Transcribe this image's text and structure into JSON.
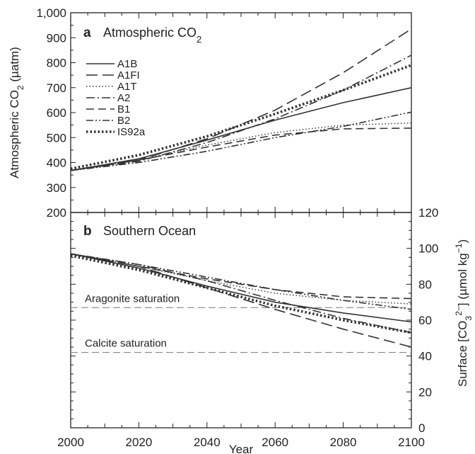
{
  "chart_data": [
    {
      "type": "line",
      "panel_letter": "a",
      "title": "Atmospheric CO",
      "title_subscript": "2",
      "ylabel": "Atmospheric CO",
      "ylabel_sub": "2",
      "ylabel_unit": " (µatm)",
      "xlim": [
        2000,
        2100
      ],
      "ylim": [
        200,
        1000
      ],
      "yticks": [
        200,
        300,
        400,
        500,
        600,
        700,
        800,
        900,
        1000
      ],
      "ytick_labels": [
        "200",
        "300",
        "400",
        "500",
        "600",
        "700",
        "800",
        "900",
        "1,000"
      ],
      "legend_position": "top-left",
      "series": [
        {
          "name": "A1B",
          "dash": "solid",
          "x": [
            2000,
            2020,
            2040,
            2060,
            2080,
            2100
          ],
          "values": [
            368,
            415,
            490,
            570,
            640,
            700
          ]
        },
        {
          "name": "A1FI",
          "dash": "longdash",
          "x": [
            2000,
            2020,
            2040,
            2060,
            2080,
            2100
          ],
          "values": [
            368,
            410,
            495,
            610,
            760,
            935
          ]
        },
        {
          "name": "A1T",
          "dash": "dot",
          "x": [
            2000,
            2020,
            2040,
            2060,
            2080,
            2100
          ],
          "values": [
            368,
            410,
            470,
            520,
            550,
            558
          ]
        },
        {
          "name": "A2",
          "dash": "dashdot",
          "x": [
            2000,
            2020,
            2040,
            2060,
            2080,
            2100
          ],
          "values": [
            368,
            405,
            480,
            575,
            690,
            830
          ]
        },
        {
          "name": "B1",
          "dash": "dash",
          "x": [
            2000,
            2020,
            2040,
            2060,
            2080,
            2100
          ],
          "values": [
            368,
            410,
            462,
            510,
            535,
            538
          ]
        },
        {
          "name": "B2",
          "dash": "dashdotdot",
          "x": [
            2000,
            2020,
            2040,
            2060,
            2080,
            2100
          ],
          "values": [
            368,
            400,
            445,
            500,
            545,
            602
          ]
        },
        {
          "name": "IS92a",
          "dash": "thickdot",
          "x": [
            2000,
            2020,
            2040,
            2060,
            2080,
            2100
          ],
          "values": [
            375,
            430,
            505,
            595,
            690,
            790
          ]
        }
      ]
    },
    {
      "type": "line",
      "panel_letter": "b",
      "title": "Southern Ocean",
      "ylabel": "Surface [CO",
      "ylabel_sub": "3",
      "ylabel_sup": "2−",
      "ylabel_unit": "] (µmol kg",
      "ylabel_unit_sup": "−1",
      "ylabel_close": ")",
      "xlabel": "Year",
      "xlim": [
        2000,
        2100
      ],
      "ylim": [
        0,
        120
      ],
      "yticks": [
        0,
        20,
        40,
        60,
        80,
        100,
        120
      ],
      "xticks": [
        2000,
        2020,
        2040,
        2060,
        2080,
        2100
      ],
      "reference_lines": [
        {
          "label": "Aragonite saturation",
          "value": 67
        },
        {
          "label": "Calcite saturation",
          "value": 42
        }
      ],
      "series": [
        {
          "name": "A1B",
          "dash": "solid",
          "x": [
            2000,
            2020,
            2040,
            2060,
            2080,
            2100
          ],
          "values": [
            97,
            89,
            79,
            70,
            64,
            59
          ]
        },
        {
          "name": "A1FI",
          "dash": "longdash",
          "x": [
            2000,
            2020,
            2040,
            2060,
            2080,
            2100
          ],
          "values": [
            97,
            90,
            78,
            66,
            55,
            45
          ]
        },
        {
          "name": "A1T",
          "dash": "dot",
          "x": [
            2000,
            2020,
            2040,
            2060,
            2080,
            2100
          ],
          "values": [
            97,
            90,
            82,
            75,
            71,
            69
          ]
        },
        {
          "name": "A2",
          "dash": "dashdot",
          "x": [
            2000,
            2020,
            2040,
            2060,
            2080,
            2100
          ],
          "values": [
            97,
            91,
            82,
            71,
            61,
            53
          ]
        },
        {
          "name": "B1",
          "dash": "dash",
          "x": [
            2000,
            2020,
            2040,
            2060,
            2080,
            2100
          ],
          "values": [
            97,
            90,
            83,
            77,
            73,
            72
          ]
        },
        {
          "name": "B2",
          "dash": "dashdotdot",
          "x": [
            2000,
            2020,
            2040,
            2060,
            2080,
            2100
          ],
          "values": [
            97,
            91,
            84,
            77,
            71,
            66
          ]
        },
        {
          "name": "IS92a",
          "dash": "thickdot",
          "x": [
            2000,
            2020,
            2040,
            2060,
            2080,
            2100
          ],
          "values": [
            96,
            88,
            78,
            68,
            60,
            53
          ]
        }
      ]
    }
  ]
}
